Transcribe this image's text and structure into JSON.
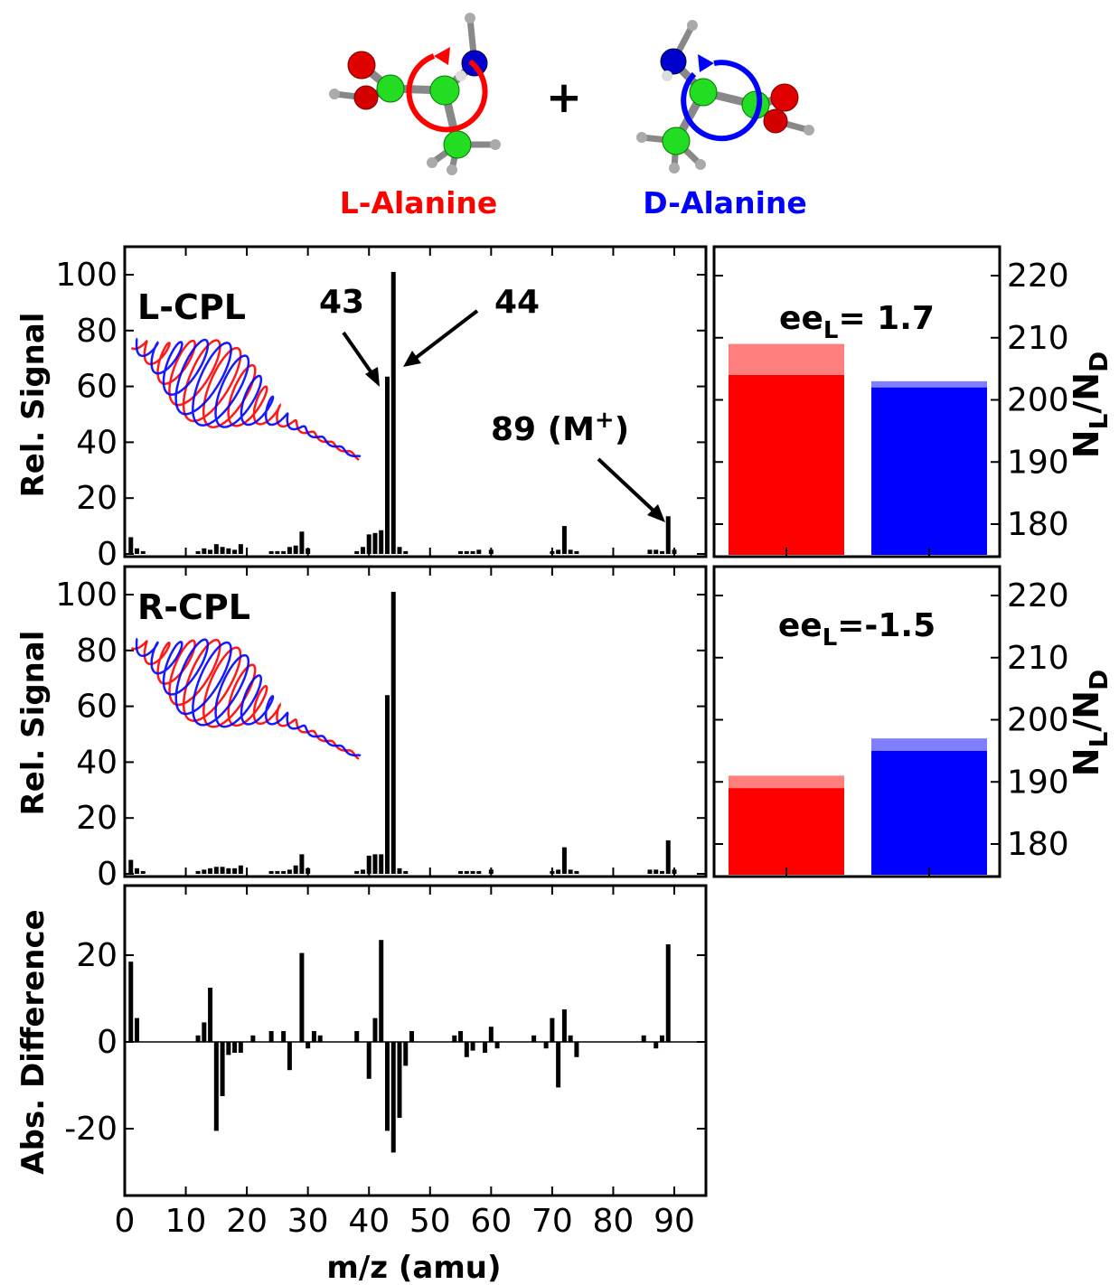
{
  "molecules": {
    "left_label": "L-Alanine",
    "right_label": "D-Alanine",
    "plus": "+",
    "left_color": "#ff0000",
    "right_color": "#0000ff"
  },
  "chart_data": [
    {
      "type": "bar",
      "panel": "L-CPL mass spectrum",
      "tag": "L-CPL",
      "ylabel": "Rel. Signal",
      "xlim": [
        0,
        95
      ],
      "ylim": [
        0,
        105
      ],
      "yticks": [
        "0",
        "20",
        "40",
        "60",
        "80",
        "100"
      ],
      "x": [
        1,
        2,
        3,
        12,
        13,
        14,
        15,
        16,
        17,
        18,
        19,
        24,
        25,
        26,
        27,
        28,
        29,
        30,
        38,
        39,
        40,
        41,
        42,
        43,
        44,
        45,
        46,
        55,
        56,
        57,
        58,
        60,
        70,
        71,
        72,
        73,
        74,
        86,
        87,
        88,
        89,
        90
      ],
      "values": [
        6,
        2,
        1,
        1,
        2,
        1.5,
        3.5,
        2.5,
        2,
        1.5,
        3.5,
        1,
        1,
        1,
        2.5,
        3,
        8,
        2,
        1,
        2.5,
        7,
        7.5,
        8.5,
        63.5,
        101,
        2.5,
        1,
        1,
        1,
        1,
        1.5,
        1.5,
        1,
        1.5,
        10,
        1.5,
        1,
        1.5,
        1.5,
        1,
        13.5,
        1.5
      ],
      "annotations": [
        {
          "text": "43",
          "x": 43
        },
        {
          "text": "44",
          "x": 44
        },
        {
          "text": "89 (M",
          "sup": "+",
          "close": ")",
          "x": 89
        }
      ]
    },
    {
      "type": "bar",
      "panel": "R-CPL mass spectrum",
      "tag": "R-CPL",
      "ylabel": "Rel. Signal",
      "xlim": [
        0,
        95
      ],
      "ylim": [
        0,
        105
      ],
      "yticks": [
        "0",
        "20",
        "40",
        "60",
        "80",
        "100"
      ],
      "x": [
        1,
        2,
        3,
        12,
        13,
        14,
        15,
        16,
        17,
        18,
        19,
        24,
        25,
        26,
        27,
        28,
        29,
        30,
        38,
        39,
        40,
        41,
        42,
        43,
        44,
        45,
        46,
        55,
        56,
        57,
        58,
        60,
        70,
        71,
        72,
        73,
        74,
        86,
        87,
        88,
        89,
        90
      ],
      "values": [
        5,
        2,
        1,
        1,
        1.5,
        2,
        2.5,
        2.5,
        2,
        2,
        3,
        1,
        1,
        1,
        1.5,
        3,
        7,
        2,
        1,
        1.5,
        6.5,
        7,
        7,
        64,
        101,
        2,
        1,
        1,
        1,
        1,
        1,
        1.5,
        1,
        1.5,
        9.5,
        1.5,
        1,
        1.5,
        1.5,
        1,
        12,
        1.5
      ]
    },
    {
      "type": "bar",
      "panel": "Absolute difference",
      "ylabel": "Abs. Difference",
      "xlabel": "m/z (amu)",
      "xlim": [
        0,
        95
      ],
      "ylim": [
        -35,
        35
      ],
      "yticks": [
        "-20",
        "0",
        "20"
      ],
      "xticks": [
        "0",
        "10",
        "20",
        "30",
        "40",
        "50",
        "60",
        "70",
        "80",
        "90"
      ],
      "x": [
        1,
        2,
        12,
        13,
        14,
        15,
        16,
        17,
        18,
        19,
        21,
        24,
        26,
        27,
        29,
        30,
        31,
        32,
        38,
        40,
        41,
        42,
        43,
        44,
        45,
        46,
        47,
        54,
        55,
        56,
        57,
        59,
        60,
        61,
        67,
        69,
        70,
        71,
        72,
        73,
        74,
        85,
        87,
        88,
        89
      ],
      "values": [
        18.5,
        5.5,
        1.5,
        4.5,
        12.5,
        -20.5,
        -12.5,
        -3,
        -2.5,
        -2.5,
        1.5,
        2.5,
        2.5,
        -6.5,
        20.5,
        -1.5,
        2.5,
        1.5,
        2.5,
        -8.5,
        5.5,
        23.5,
        -20.5,
        -25.5,
        -17.5,
        -5.5,
        2.5,
        1.5,
        2.5,
        -3.5,
        -2,
        -2.5,
        3.5,
        -1.5,
        1.5,
        -1.5,
        5.5,
        -10.5,
        7.5,
        1.5,
        -3.5,
        1.5,
        -1.5,
        1.5,
        22.5
      ]
    },
    {
      "type": "bar",
      "panel": "L-CPL enantiomer ratio",
      "ylabel": "N_L / N_D",
      "ylim": [
        175,
        225
      ],
      "yticks": [
        "180",
        "190",
        "200",
        "210",
        "220"
      ],
      "ee_text": "ee",
      "ee_sub": "L",
      "ee_value": "= 1.7",
      "series": [
        {
          "name": "L",
          "value": 204,
          "upper": 209,
          "color": "#ff0000"
        },
        {
          "name": "D",
          "value": 202,
          "upper": 203,
          "color": "#0000ff"
        }
      ]
    },
    {
      "type": "bar",
      "panel": "R-CPL enantiomer ratio",
      "ylabel": "N_L / N_D",
      "ylim": [
        175,
        225
      ],
      "yticks": [
        "180",
        "190",
        "200",
        "210",
        "220"
      ],
      "ee_text": "ee",
      "ee_sub": "L",
      "ee_value": "=-1.5",
      "series": [
        {
          "name": "L",
          "value": 189,
          "upper": 191,
          "color": "#ff0000"
        },
        {
          "name": "D",
          "value": 195,
          "upper": 197,
          "color": "#0000ff"
        }
      ]
    }
  ],
  "labels": {
    "ylabel_ratio_main": "N",
    "ylabel_ratio_sub1": "L",
    "ylabel_ratio_slash": "/N",
    "ylabel_ratio_sub2": "D"
  }
}
